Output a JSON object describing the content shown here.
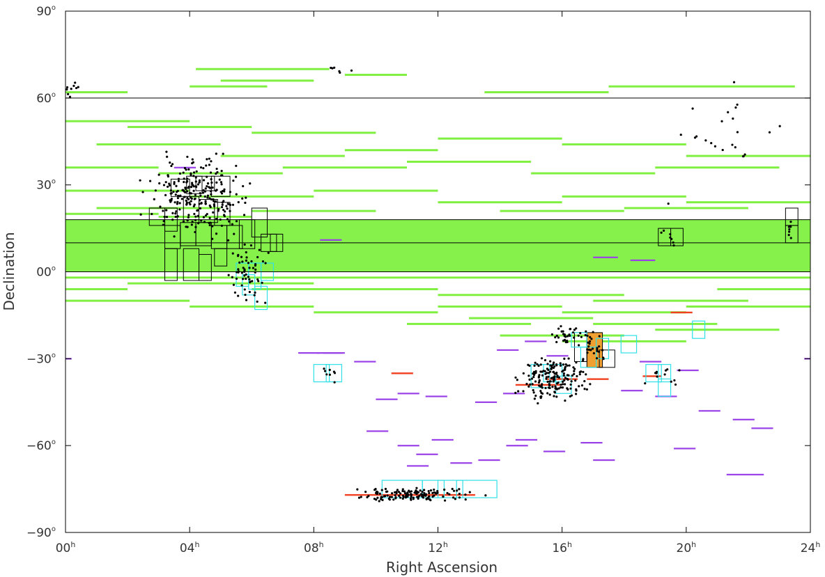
{
  "chart_data": {
    "type": "scatter",
    "title": "",
    "xlabel": "Right Ascension",
    "ylabel": "Declination",
    "xlim": [
      0,
      24
    ],
    "ylim": [
      -90,
      90
    ],
    "grid": false,
    "x_ticks": [
      0,
      4,
      8,
      12,
      16,
      20,
      24
    ],
    "x_tick_labels": [
      {
        "main": "00",
        "sup": "h"
      },
      {
        "main": "04",
        "sup": "h"
      },
      {
        "main": "08",
        "sup": "h"
      },
      {
        "main": "12",
        "sup": "h"
      },
      {
        "main": "16",
        "sup": "h"
      },
      {
        "main": "20",
        "sup": "h"
      },
      {
        "main": "24",
        "sup": "h"
      }
    ],
    "y_ticks": [
      90,
      60,
      30,
      0,
      -30,
      -60,
      -90
    ],
    "y_tick_labels": [
      {
        "main": "90",
        "sup": "o"
      },
      {
        "main": "60",
        "sup": "o"
      },
      {
        "main": "30",
        "sup": "o"
      },
      {
        "main": "00",
        "sup": "o"
      },
      {
        "main": "−30",
        "sup": "o"
      },
      {
        "main": "−60",
        "sup": "o"
      },
      {
        "main": "−90",
        "sup": "o"
      }
    ],
    "reference_lines_dec": [
      60,
      18,
      10,
      0
    ],
    "colors": {
      "strips": "#80f040",
      "purple": "#9a40e8",
      "red": "#f04020",
      "cyan": "#30e0e8",
      "black": "#000000",
      "orange": "#f0a030"
    },
    "green_bands": [
      [
        0,
        24,
        10,
        18
      ],
      [
        0,
        24,
        0,
        10
      ]
    ],
    "green_strips": [
      [
        0,
        2,
        62
      ],
      [
        4.2,
        8.5,
        70
      ],
      [
        4.0,
        6.5,
        64
      ],
      [
        5,
        8,
        66
      ],
      [
        9.0,
        11.0,
        68
      ],
      [
        13.5,
        17.5,
        62
      ],
      [
        17.5,
        23.5,
        64
      ],
      [
        0,
        4,
        52
      ],
      [
        2,
        6,
        50
      ],
      [
        6,
        10,
        48
      ],
      [
        1,
        5,
        44
      ],
      [
        5,
        9,
        40
      ],
      [
        9,
        12,
        42
      ],
      [
        12,
        16,
        46
      ],
      [
        16,
        20,
        44
      ],
      [
        20,
        24,
        40
      ],
      [
        0,
        3,
        36
      ],
      [
        3,
        7,
        34
      ],
      [
        7,
        11,
        36
      ],
      [
        11,
        15,
        38
      ],
      [
        15,
        19,
        34
      ],
      [
        19,
        23,
        36
      ],
      [
        0,
        4,
        28
      ],
      [
        4,
        8,
        26
      ],
      [
        8,
        12,
        28
      ],
      [
        12,
        16,
        24
      ],
      [
        16,
        20,
        26
      ],
      [
        20,
        24,
        24
      ],
      [
        1,
        5,
        22
      ],
      [
        6,
        10,
        21
      ],
      [
        14,
        18,
        21
      ],
      [
        18,
        22,
        22
      ],
      [
        0,
        3,
        20
      ],
      [
        3,
        6,
        19
      ],
      [
        0,
        24,
        -2
      ],
      [
        2,
        8,
        -4
      ],
      [
        6,
        12,
        -6
      ],
      [
        12,
        18,
        -8
      ],
      [
        17,
        22,
        -10
      ],
      [
        0,
        4,
        -10
      ],
      [
        4,
        8,
        -12
      ],
      [
        8,
        12,
        -14
      ],
      [
        12,
        16,
        -12
      ],
      [
        16,
        20,
        -14
      ],
      [
        20,
        24,
        -12
      ],
      [
        13,
        17,
        -16
      ],
      [
        17,
        21,
        -18
      ],
      [
        19,
        23,
        -20
      ],
      [
        14,
        18,
        -22
      ],
      [
        16,
        20,
        -24
      ],
      [
        11,
        15,
        -18
      ],
      [
        0,
        2,
        -6
      ],
      [
        21,
        24,
        -6
      ]
    ],
    "purple_strips": [
      [
        3.5,
        4.2,
        36
      ],
      [
        8.2,
        8.9,
        11
      ],
      [
        17.0,
        17.8,
        5
      ],
      [
        18.2,
        19.0,
        4
      ],
      [
        0,
        0.2,
        -30
      ],
      [
        23.8,
        24,
        -30
      ],
      [
        7.5,
        8.2,
        -28
      ],
      [
        8.1,
        8.9,
        -28
      ],
      [
        9.3,
        10.0,
        -31
      ],
      [
        13.9,
        14.6,
        -27
      ],
      [
        14.8,
        15.5,
        -24
      ],
      [
        15.5,
        16.2,
        -29
      ],
      [
        18.5,
        19.2,
        -31
      ],
      [
        19.7,
        20.4,
        -34
      ],
      [
        10.0,
        10.7,
        -44
      ],
      [
        10.7,
        11.4,
        -42
      ],
      [
        11.6,
        12.3,
        -43
      ],
      [
        13.2,
        13.9,
        -45
      ],
      [
        14.1,
        14.8,
        -42
      ],
      [
        17.9,
        18.6,
        -41
      ],
      [
        19.0,
        19.7,
        -43
      ],
      [
        20.4,
        21.1,
        -48
      ],
      [
        21.5,
        22.2,
        -51
      ],
      [
        22.1,
        22.8,
        -54
      ],
      [
        9.7,
        10.4,
        -55
      ],
      [
        10.7,
        11.4,
        -60
      ],
      [
        11.8,
        12.5,
        -58
      ],
      [
        14.5,
        15.2,
        -58
      ],
      [
        16.6,
        17.3,
        -59
      ],
      [
        11.3,
        12.0,
        -63
      ],
      [
        12.4,
        13.1,
        -66
      ],
      [
        14.2,
        14.9,
        -60
      ],
      [
        15.4,
        16.1,
        -62
      ],
      [
        19.6,
        20.3,
        -61
      ],
      [
        11.0,
        11.7,
        -67
      ],
      [
        13.3,
        14.0,
        -65
      ],
      [
        17.0,
        17.7,
        -65
      ],
      [
        21.3,
        22.5,
        -70
      ],
      [
        8.3,
        9.0,
        -28
      ]
    ],
    "red_strips": [
      [
        9.0,
        11.5,
        -77
      ],
      [
        11.6,
        13.2,
        -77
      ],
      [
        10.5,
        11.2,
        -35
      ],
      [
        14.5,
        16.0,
        -39
      ],
      [
        15.5,
        16.5,
        -37
      ],
      [
        16.8,
        17.5,
        -37
      ],
      [
        18.6,
        19.2,
        -36
      ],
      [
        19.5,
        20.2,
        -14
      ]
    ],
    "black_boxes": [
      [
        2.7,
        3.2,
        16,
        22
      ],
      [
        3.2,
        3.6,
        14,
        22
      ],
      [
        3.4,
        4.0,
        26,
        32
      ],
      [
        3.9,
        4.4,
        27,
        33
      ],
      [
        4.2,
        4.8,
        28,
        33
      ],
      [
        4.7,
        5.3,
        26,
        33
      ],
      [
        3.8,
        4.3,
        18,
        26
      ],
      [
        4.3,
        4.9,
        17,
        25
      ],
      [
        4.8,
        5.3,
        16,
        24
      ],
      [
        3.2,
        3.7,
        8,
        16
      ],
      [
        3.7,
        4.2,
        9,
        17
      ],
      [
        4.2,
        4.7,
        9,
        17
      ],
      [
        4.7,
        5.2,
        8,
        16
      ],
      [
        5.2,
        5.7,
        8,
        16
      ],
      [
        5.6,
        6.1,
        8,
        18
      ],
      [
        6.0,
        6.5,
        12,
        22
      ],
      [
        6.3,
        6.8,
        7,
        13
      ],
      [
        6.6,
        7.0,
        7,
        13
      ],
      [
        3.2,
        3.6,
        -3,
        8
      ],
      [
        3.8,
        4.3,
        -3,
        8
      ],
      [
        4.3,
        4.7,
        -3,
        6
      ],
      [
        4.8,
        5.2,
        2,
        8
      ],
      [
        19.1,
        19.5,
        9,
        15
      ],
      [
        19.5,
        19.9,
        9,
        15
      ],
      [
        23.2,
        23.6,
        10,
        16
      ],
      [
        23.2,
        23.6,
        16,
        22
      ],
      [
        16.4,
        16.8,
        -31,
        -21
      ],
      [
        16.8,
        17.3,
        -33,
        -21
      ],
      [
        17.2,
        17.7,
        -33,
        -27
      ]
    ],
    "cyan_boxes": [
      [
        5.5,
        5.9,
        -5,
        3
      ],
      [
        5.9,
        6.3,
        -6,
        3
      ],
      [
        6.3,
        6.7,
        -3,
        3
      ],
      [
        5.7,
        6.1,
        -8,
        -1
      ],
      [
        6.1,
        6.5,
        -13,
        -5
      ],
      [
        8.0,
        8.5,
        -38,
        -32
      ],
      [
        8.4,
        8.9,
        -38,
        -32
      ],
      [
        10.2,
        11.5,
        -78,
        -72
      ],
      [
        11.5,
        12.2,
        -78,
        -72
      ],
      [
        12.0,
        12.8,
        -78,
        -72
      ],
      [
        12.6,
        13.9,
        -78,
        -72
      ],
      [
        15.0,
        15.6,
        -40,
        -32
      ],
      [
        15.4,
        16.0,
        -38,
        -32
      ],
      [
        15.8,
        16.3,
        -42,
        -36
      ],
      [
        16.3,
        16.8,
        -26,
        -21
      ],
      [
        16.6,
        17.1,
        -33,
        -26
      ],
      [
        17.1,
        17.5,
        -30,
        -23
      ],
      [
        17.9,
        18.4,
        -28,
        -22
      ],
      [
        18.7,
        19.2,
        -38,
        -32
      ],
      [
        19.1,
        19.5,
        -38,
        -32
      ],
      [
        19.1,
        19.5,
        -43,
        -37
      ],
      [
        20.2,
        20.6,
        -23,
        -17
      ]
    ],
    "orange_boxes": [
      [
        16.8,
        17.3,
        -33,
        -21
      ]
    ],
    "point_clusters": [
      [
        4.3,
        26,
        1.2,
        10,
        260
      ],
      [
        5.8,
        -1,
        0.5,
        8,
        60
      ],
      [
        15.7,
        -37,
        0.8,
        6,
        180
      ],
      [
        16.4,
        -22,
        0.6,
        3,
        40
      ],
      [
        11.2,
        -77,
        1.5,
        2,
        140
      ],
      [
        17.1,
        -27,
        0.4,
        3,
        20
      ],
      [
        19.2,
        -35,
        0.5,
        3,
        12
      ],
      [
        8.3,
        -35,
        0.5,
        2,
        8
      ],
      [
        23.3,
        14,
        0.2,
        3,
        8
      ],
      [
        19.4,
        13,
        0.3,
        6,
        8
      ],
      [
        0.2,
        63,
        0.4,
        2,
        12
      ],
      [
        21.5,
        48,
        1.5,
        12,
        22
      ],
      [
        8.6,
        70,
        0.5,
        2,
        6
      ]
    ]
  }
}
